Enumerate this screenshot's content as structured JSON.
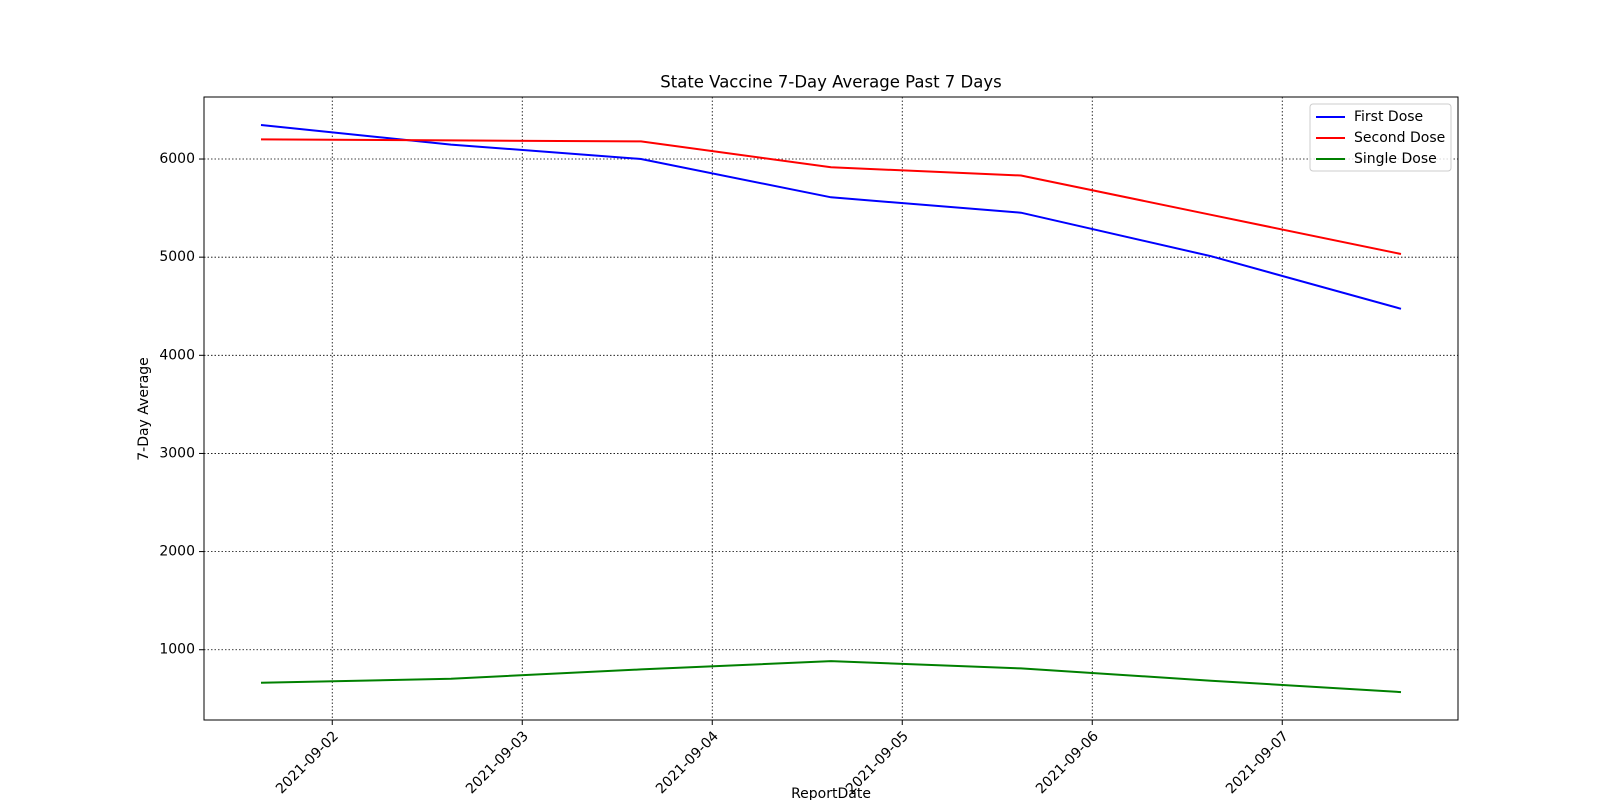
{
  "chart_data": {
    "type": "line",
    "title": "State Vaccine 7-Day Average Past 7 Days",
    "x_label": "ReportDate",
    "y_label": "7-Day Average",
    "x": [
      "2021-09-01T15:00",
      "2021-09-02T15:00",
      "2021-09-03T15:00",
      "2021-09-04T15:00",
      "2021-09-05T15:00",
      "2021-09-06T15:00",
      "2021-09-07T15:00"
    ],
    "series": [
      {
        "name": "First Dose",
        "color": "#0000ff",
        "values": [
          6347,
          6147,
          6000,
          5610,
          5453,
          5010,
          4474
        ]
      },
      {
        "name": "Second Dose",
        "color": "#ff0000",
        "values": [
          6200,
          6190,
          6180,
          5916,
          5832,
          5432,
          5032
        ]
      },
      {
        "name": "Single Dose",
        "color": "#008000",
        "values": [
          663,
          705,
          800,
          884,
          810,
          684,
          568
        ]
      }
    ],
    "xlim": [
      "2021-09-01T07:48",
      "2021-09-07T22:12"
    ],
    "xticks": [
      "2021-09-02",
      "2021-09-03",
      "2021-09-04",
      "2021-09-05",
      "2021-09-06",
      "2021-09-07"
    ],
    "ylim": [
      284,
      6632
    ],
    "yticks": [
      1000,
      2000,
      3000,
      4000,
      5000,
      6000
    ],
    "grid": true,
    "legend": "upper-right"
  }
}
